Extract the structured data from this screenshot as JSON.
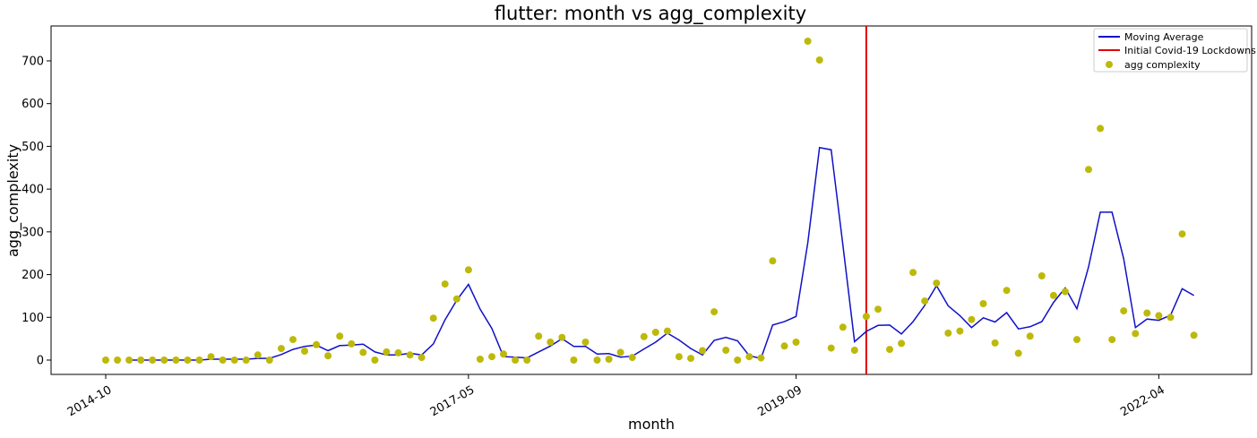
{
  "chart_data": {
    "type": "line",
    "title": "flutter: month vs agg_complexity",
    "xlabel": "month",
    "ylabel": "agg_complexity",
    "x_start": "2014-10",
    "x_ticks": [
      "2014-10",
      "2017-05",
      "2019-09",
      "2022-04"
    ],
    "y_ticks": [
      0,
      100,
      200,
      300,
      400,
      500,
      600,
      700
    ],
    "ylim": [
      -35,
      782
    ],
    "grid": false,
    "legend_position": "top-right",
    "annotation": {
      "label": "Initial Covid-19 Lockdowns",
      "x": "2020-03",
      "color": "#e00000"
    },
    "series": [
      {
        "name": "agg complexity",
        "kind": "scatter",
        "color": "#bdb90a",
        "points": [
          [
            "2014-10",
            0
          ],
          [
            "2014-11",
            0
          ],
          [
            "2014-12",
            0
          ],
          [
            "2015-01",
            0
          ],
          [
            "2015-02",
            0
          ],
          [
            "2015-03",
            0
          ],
          [
            "2015-04",
            0
          ],
          [
            "2015-05",
            0
          ],
          [
            "2015-06",
            0
          ],
          [
            "2015-07",
            8
          ],
          [
            "2015-08",
            0
          ],
          [
            "2015-09",
            0
          ],
          [
            "2015-10",
            0
          ],
          [
            "2015-11",
            12
          ],
          [
            "2015-12",
            0
          ],
          [
            "2016-01",
            27
          ],
          [
            "2016-02",
            48
          ],
          [
            "2016-03",
            21
          ],
          [
            "2016-04",
            36
          ],
          [
            "2016-05",
            10
          ],
          [
            "2016-06",
            56
          ],
          [
            "2016-07",
            38
          ],
          [
            "2016-08",
            18
          ],
          [
            "2016-09",
            0
          ],
          [
            "2016-10",
            19
          ],
          [
            "2016-11",
            17
          ],
          [
            "2016-12",
            12
          ],
          [
            "2017-01",
            6
          ],
          [
            "2017-02",
            98
          ],
          [
            "2017-03",
            178
          ],
          [
            "2017-04",
            143
          ],
          [
            "2017-05",
            211
          ],
          [
            "2017-06",
            2
          ],
          [
            "2017-07",
            8
          ],
          [
            "2017-08",
            14
          ],
          [
            "2017-09",
            0
          ],
          [
            "2017-10",
            0
          ],
          [
            "2017-11",
            56
          ],
          [
            "2017-12",
            42
          ],
          [
            "2018-01",
            53
          ],
          [
            "2018-02",
            0
          ],
          [
            "2018-03",
            42
          ],
          [
            "2018-04",
            0
          ],
          [
            "2018-05",
            2
          ],
          [
            "2018-06",
            18
          ],
          [
            "2018-07",
            6
          ],
          [
            "2018-08",
            55
          ],
          [
            "2018-09",
            65
          ],
          [
            "2018-10",
            68
          ],
          [
            "2018-11",
            8
          ],
          [
            "2018-12",
            4
          ],
          [
            "2019-01",
            22
          ],
          [
            "2019-02",
            113
          ],
          [
            "2019-03",
            23
          ],
          [
            "2019-04",
            0
          ],
          [
            "2019-05",
            8
          ],
          [
            "2019-06",
            5
          ],
          [
            "2019-07",
            232
          ],
          [
            "2019-08",
            33
          ],
          [
            "2019-09",
            42
          ],
          [
            "2019-10",
            746
          ],
          [
            "2019-11",
            702
          ],
          [
            "2019-12",
            28
          ],
          [
            "2020-01",
            77
          ],
          [
            "2020-02",
            23
          ],
          [
            "2020-03",
            102
          ],
          [
            "2020-04",
            119
          ],
          [
            "2020-05",
            25
          ],
          [
            "2020-06",
            39
          ],
          [
            "2020-07",
            205
          ],
          [
            "2020-08",
            138
          ],
          [
            "2020-09",
            180
          ],
          [
            "2020-10",
            63
          ],
          [
            "2020-11",
            68
          ],
          [
            "2020-12",
            95
          ],
          [
            "2021-01",
            132
          ],
          [
            "2021-02",
            40
          ],
          [
            "2021-03",
            163
          ],
          [
            "2021-04",
            16
          ],
          [
            "2021-05",
            56
          ],
          [
            "2021-06",
            197
          ],
          [
            "2021-07",
            151
          ],
          [
            "2021-08",
            160
          ],
          [
            "2021-09",
            48
          ],
          [
            "2021-10",
            446
          ],
          [
            "2021-11",
            542
          ],
          [
            "2021-12",
            48
          ],
          [
            "2022-01",
            115
          ],
          [
            "2022-02",
            62
          ],
          [
            "2022-03",
            110
          ],
          [
            "2022-04",
            104
          ],
          [
            "2022-05",
            100
          ],
          [
            "2022-06",
            295
          ],
          [
            "2022-07",
            58
          ]
        ]
      },
      {
        "name": "Moving Average",
        "kind": "line",
        "color": "#1010c8",
        "points": [
          [
            "2014-12",
            0
          ],
          [
            "2015-01",
            0
          ],
          [
            "2015-02",
            0
          ],
          [
            "2015-03",
            0
          ],
          [
            "2015-04",
            0
          ],
          [
            "2015-05",
            0
          ],
          [
            "2015-06",
            0
          ],
          [
            "2015-07",
            2
          ],
          [
            "2015-08",
            2
          ],
          [
            "2015-09",
            2
          ],
          [
            "2015-10",
            2
          ],
          [
            "2015-11",
            4
          ],
          [
            "2015-12",
            4
          ],
          [
            "2016-01",
            13
          ],
          [
            "2016-02",
            25
          ],
          [
            "2016-03",
            32
          ],
          [
            "2016-04",
            35
          ],
          [
            "2016-05",
            22
          ],
          [
            "2016-06",
            34
          ],
          [
            "2016-07",
            35
          ],
          [
            "2016-08",
            37
          ],
          [
            "2016-09",
            19
          ],
          [
            "2016-10",
            12
          ],
          [
            "2016-11",
            12
          ],
          [
            "2016-12",
            16
          ],
          [
            "2017-01",
            12
          ],
          [
            "2017-02",
            38
          ],
          [
            "2017-03",
            94
          ],
          [
            "2017-04",
            140
          ],
          [
            "2017-05",
            177
          ],
          [
            "2017-06",
            119
          ],
          [
            "2017-07",
            74
          ],
          [
            "2017-08",
            8
          ],
          [
            "2017-09",
            7
          ],
          [
            "2017-10",
            5
          ],
          [
            "2017-11",
            19
          ],
          [
            "2017-12",
            33
          ],
          [
            "2018-01",
            50
          ],
          [
            "2018-02",
            32
          ],
          [
            "2018-03",
            32
          ],
          [
            "2018-04",
            14
          ],
          [
            "2018-05",
            15
          ],
          [
            "2018-06",
            7
          ],
          [
            "2018-07",
            9
          ],
          [
            "2018-08",
            26
          ],
          [
            "2018-09",
            42
          ],
          [
            "2018-10",
            63
          ],
          [
            "2018-11",
            47
          ],
          [
            "2018-12",
            27
          ],
          [
            "2019-01",
            12
          ],
          [
            "2019-02",
            46
          ],
          [
            "2019-03",
            53
          ],
          [
            "2019-04",
            45
          ],
          [
            "2019-05",
            10
          ],
          [
            "2019-06",
            4
          ],
          [
            "2019-07",
            82
          ],
          [
            "2019-08",
            90
          ],
          [
            "2019-09",
            102
          ],
          [
            "2019-10",
            274
          ],
          [
            "2019-11",
            497
          ],
          [
            "2019-12",
            492
          ],
          [
            "2020-01",
            269
          ],
          [
            "2020-02",
            43
          ],
          [
            "2020-03",
            67
          ],
          [
            "2020-04",
            81
          ],
          [
            "2020-05",
            82
          ],
          [
            "2020-06",
            61
          ],
          [
            "2020-07",
            90
          ],
          [
            "2020-08",
            128
          ],
          [
            "2020-09",
            174
          ],
          [
            "2020-10",
            127
          ],
          [
            "2020-11",
            104
          ],
          [
            "2020-12",
            76
          ],
          [
            "2021-01",
            99
          ],
          [
            "2021-02",
            89
          ],
          [
            "2021-03",
            111
          ],
          [
            "2021-04",
            73
          ],
          [
            "2021-05",
            78
          ],
          [
            "2021-06",
            90
          ],
          [
            "2021-07",
            135
          ],
          [
            "2021-08",
            169
          ],
          [
            "2021-09",
            120
          ],
          [
            "2021-10",
            218
          ],
          [
            "2021-11",
            346
          ],
          [
            "2021-12",
            346
          ],
          [
            "2022-01",
            237
          ],
          [
            "2022-02",
            76
          ],
          [
            "2022-03",
            96
          ],
          [
            "2022-04",
            93
          ],
          [
            "2022-05",
            105
          ],
          [
            "2022-06",
            167
          ],
          [
            "2022-07",
            151
          ]
        ]
      }
    ]
  }
}
